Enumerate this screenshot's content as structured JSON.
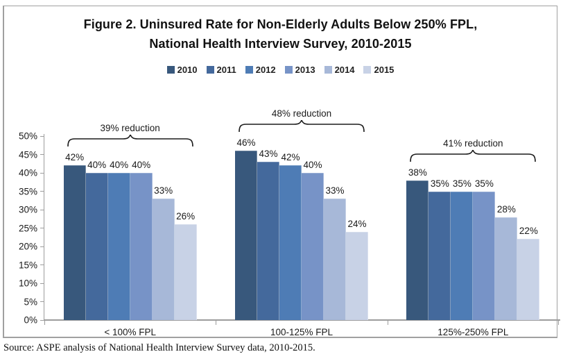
{
  "figure": {
    "title_line1": "Figure 2. Uninsured Rate for Non-Elderly Adults Below 250% FPL,",
    "title_line2": "National Health Interview Survey, 2010-2015",
    "source": "Source: ASPE analysis of National Health Interview Survey data, 2010-2015."
  },
  "chart_data": {
    "type": "bar",
    "title": "Figure 2. Uninsured Rate for Non-Elderly Adults Below 250% FPL, National Health Interview Survey, 2010-2015",
    "categories": [
      "< 100% FPL",
      "100-125% FPL",
      "125%-250% FPL"
    ],
    "series": [
      {
        "name": "2010",
        "color": "#38587C",
        "values": [
          42,
          46,
          38
        ]
      },
      {
        "name": "2011",
        "color": "#44699C",
        "values": [
          40,
          43,
          35
        ]
      },
      {
        "name": "2012",
        "color": "#4E7CB5",
        "values": [
          40,
          42,
          35
        ]
      },
      {
        "name": "2013",
        "color": "#7793C7",
        "values": [
          40,
          40,
          35
        ]
      },
      {
        "name": "2014",
        "color": "#A7B8D8",
        "values": [
          33,
          33,
          28
        ]
      },
      {
        "name": "2015",
        "color": "#C8D2E6",
        "values": [
          26,
          24,
          22
        ]
      }
    ],
    "annotations": [
      "39% reduction",
      "48% reduction",
      "41% reduction"
    ],
    "value_suffix": "%",
    "ylim": [
      0,
      50
    ],
    "ytick_step": 5,
    "ytick_labels": [
      "0%",
      "5%",
      "10%",
      "15%",
      "20%",
      "25%",
      "30%",
      "35%",
      "40%",
      "45%",
      "50%"
    ],
    "grid": false,
    "legend_position": "top"
  },
  "colors": {
    "axis": "#9c9c9c",
    "border": "#a0a0a0",
    "text": "#1a1a1a"
  }
}
